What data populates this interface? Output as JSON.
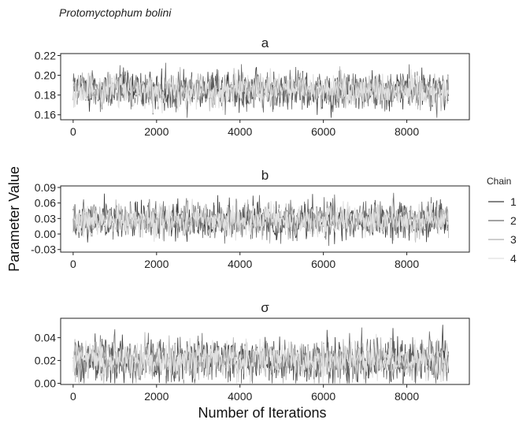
{
  "figure": {
    "species": "Protomyctophum bolini",
    "ylabel": "Parameter Value",
    "xlabel": "Number of Iterations",
    "legend_title": "Chain"
  },
  "chart_data": [
    {
      "type": "line",
      "panel": "a",
      "title": "a",
      "x_range": [
        0,
        9000
      ],
      "xlim": [
        -300,
        9500
      ],
      "x_ticks": [
        0,
        2000,
        4000,
        6000,
        8000
      ],
      "x_tick_labels": [
        "0",
        "2000",
        "4000",
        "6000",
        "8000"
      ],
      "ylim": [
        0.155,
        0.222
      ],
      "y_ticks": [
        0.16,
        0.18,
        0.2,
        0.22
      ],
      "y_tick_labels": [
        "0.16",
        "0.18",
        "0.20",
        "0.22"
      ],
      "center": 0.185,
      "spread": 0.009,
      "observed_min": 0.157,
      "observed_max": 0.218,
      "grid": false,
      "series": [
        {
          "name": "1",
          "color": "#3a3a3a"
        },
        {
          "name": "2",
          "color": "#6a6a6a"
        },
        {
          "name": "3",
          "color": "#b0b0b0"
        },
        {
          "name": "4",
          "color": "#e0e0e0"
        }
      ]
    },
    {
      "type": "line",
      "panel": "b",
      "title": "b",
      "x_range": [
        0,
        9000
      ],
      "xlim": [
        -300,
        9500
      ],
      "x_ticks": [
        0,
        2000,
        4000,
        6000,
        8000
      ],
      "x_tick_labels": [
        "0",
        "2000",
        "4000",
        "6000",
        "8000"
      ],
      "ylim": [
        -0.035,
        0.093
      ],
      "y_ticks": [
        -0.03,
        0,
        0.03,
        0.06,
        0.09
      ],
      "y_tick_labels": [
        "-0.03",
        "0.00",
        "0.03",
        "0.06",
        "0.09"
      ],
      "center": 0.027,
      "spread": 0.017,
      "observed_min": -0.03,
      "observed_max": 0.09,
      "grid": false,
      "series": [
        {
          "name": "1",
          "color": "#3a3a3a"
        },
        {
          "name": "2",
          "color": "#6a6a6a"
        },
        {
          "name": "3",
          "color": "#b0b0b0"
        },
        {
          "name": "4",
          "color": "#e0e0e0"
        }
      ]
    },
    {
      "type": "line",
      "panel": "sigma",
      "title": "σ",
      "x_range": [
        0,
        9000
      ],
      "xlim": [
        -300,
        9500
      ],
      "x_ticks": [
        0,
        2000,
        4000,
        6000,
        8000
      ],
      "x_tick_labels": [
        "0",
        "2000",
        "4000",
        "6000",
        "8000"
      ],
      "ylim": [
        -0.001,
        0.057
      ],
      "y_ticks": [
        0,
        0.02,
        0.04
      ],
      "y_tick_labels": [
        "0.00",
        "0.02",
        "0.04"
      ],
      "center": 0.02,
      "spread": 0.009,
      "observed_min": 0.0,
      "observed_max": 0.055,
      "grid": false,
      "series": [
        {
          "name": "1",
          "color": "#3a3a3a"
        },
        {
          "name": "2",
          "color": "#6a6a6a"
        },
        {
          "name": "3",
          "color": "#b0b0b0"
        },
        {
          "name": "4",
          "color": "#e0e0e0"
        }
      ]
    }
  ],
  "legend": {
    "title": "Chain",
    "placement": "right",
    "entries": [
      {
        "label": "1",
        "color": "#3a3a3a"
      },
      {
        "label": "2",
        "color": "#6a6a6a"
      },
      {
        "label": "3",
        "color": "#b0b0b0"
      },
      {
        "label": "4",
        "color": "#e0e0e0"
      }
    ]
  }
}
